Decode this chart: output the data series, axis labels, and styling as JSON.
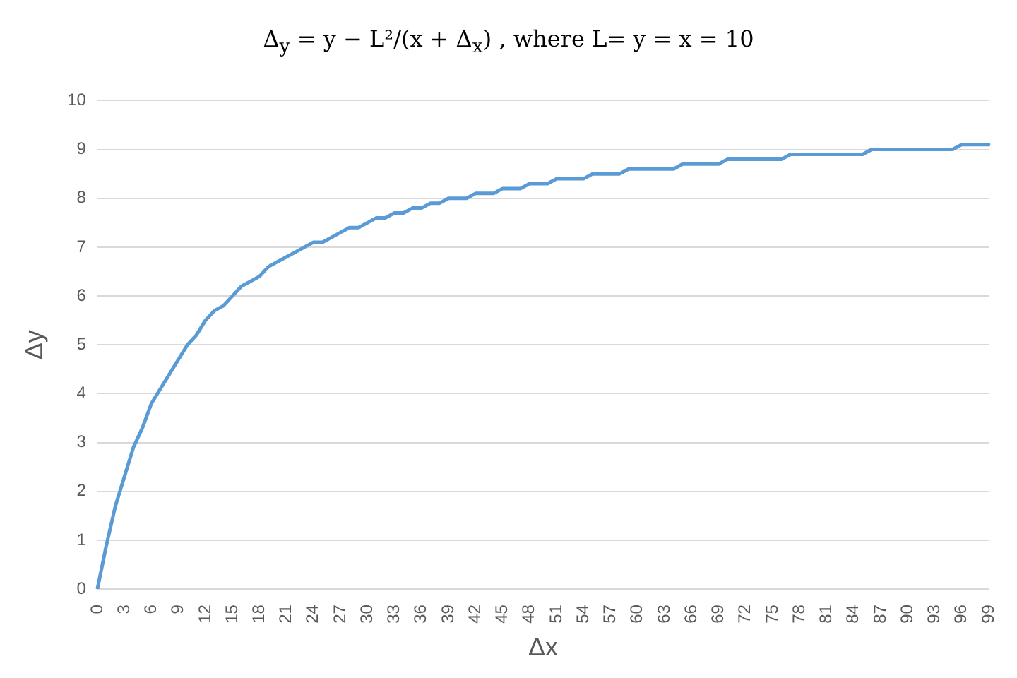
{
  "chart_data": {
    "type": "line",
    "title": "Δ$_{y}$ = y − L²/(x + Δ$_{x}$) , where L= y = x = 10",
    "xlabel": "Δx",
    "ylabel": "Δy",
    "categories": [
      "0",
      null,
      null,
      "3",
      null,
      null,
      "6",
      null,
      null,
      "9",
      null,
      null,
      "12",
      null,
      null,
      "15",
      null,
      null,
      "18",
      null,
      null,
      "21",
      null,
      null,
      "24",
      null,
      null,
      "27",
      null,
      null,
      "30",
      null,
      null,
      "33",
      null,
      null,
      "36",
      null,
      null,
      "39",
      null,
      null,
      "42",
      null,
      null,
      "45",
      null,
      null,
      "48",
      null,
      null,
      "51",
      null,
      null,
      "54",
      null,
      null,
      "57",
      null,
      null,
      "60",
      null,
      null,
      "63",
      null,
      null,
      "66",
      null,
      null,
      "69",
      null,
      null,
      "72",
      null,
      null,
      "75",
      null,
      null,
      "78",
      null,
      null,
      "81",
      null,
      null,
      "84",
      null,
      null,
      "87",
      null,
      null,
      "90",
      null,
      null,
      "93",
      null,
      null,
      "96",
      null,
      null,
      "99"
    ],
    "series": [
      {
        "color": "#5b9bd5",
        "values": [
          0,
          0.9,
          1.7,
          2.3,
          2.9,
          3.3,
          3.8,
          4.1,
          4.4,
          4.7,
          5,
          5.2,
          5.5,
          5.7,
          5.8,
          6,
          6.2,
          6.3,
          6.4,
          6.6,
          6.7,
          6.8,
          6.9,
          7,
          7.1,
          7.1,
          7.2,
          7.3,
          7.4,
          7.4,
          7.5,
          7.6,
          7.6,
          7.7,
          7.7,
          7.8,
          7.8,
          7.9,
          7.9,
          8,
          8,
          8,
          8.1,
          8.1,
          8.1,
          8.2,
          8.2,
          8.2,
          8.3,
          8.3,
          8.3,
          8.4,
          8.4,
          8.4,
          8.4,
          8.5,
          8.5,
          8.5,
          8.5,
          8.6,
          8.6,
          8.6,
          8.6,
          8.6,
          8.6,
          8.7,
          8.7,
          8.7,
          8.7,
          8.7,
          8.8,
          8.8,
          8.8,
          8.8,
          8.8,
          8.8,
          8.8,
          8.9,
          8.9,
          8.9,
          8.9,
          8.9,
          8.9,
          8.9,
          8.9,
          8.9,
          9,
          9,
          9,
          9,
          9,
          9,
          9,
          9,
          9,
          9,
          9.1,
          9.1,
          9.1,
          9.1
        ]
      }
    ],
    "ylim": [
      0,
      10
    ],
    "yticks": [
      0,
      1,
      2,
      3,
      4,
      5,
      6,
      7,
      8,
      9,
      10
    ],
    "grid": "y",
    "legend": false,
    "marker": "none",
    "line_style": "solid"
  }
}
